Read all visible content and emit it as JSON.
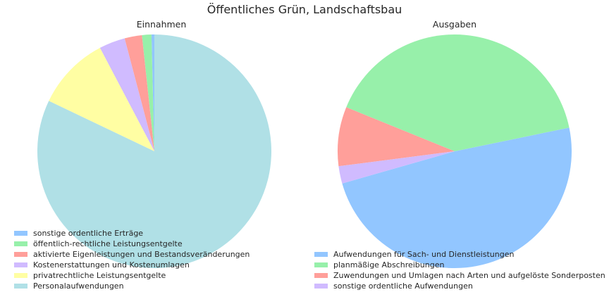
{
  "title": "Öffentliches Grün, Landschaftsbau",
  "colors": [
    "#92c6ff",
    "#97f0aa",
    "#ff9f9a",
    "#d0bbff",
    "#fffea3",
    "#b0e0e6"
  ],
  "chart_data": [
    {
      "type": "pie",
      "title": "Einnahmen",
      "legend_placement": "lower-left",
      "start_angle_deg": 90,
      "direction": "counterclockwise",
      "labels": [
        "sonstige ordentliche Erträge",
        "öffentlich-rechtliche Leistungsentgelte",
        "aktivierte Eigenleistungen und Bestandsveränderungen",
        "Kostenerstattungen und Kostenumlagen",
        "privatrechtliche Leistungsentgelte",
        "Personalaufwendungen"
      ],
      "values": [
        0.4,
        1.3,
        2.4,
        3.6,
        10.2,
        82.1
      ]
    },
    {
      "type": "pie",
      "title": "Ausgaben",
      "legend_placement": "lower-left",
      "start_angle_deg": 196,
      "direction": "counterclockwise",
      "labels": [
        "Aufwendungen für Sach- und Dienstleistungen",
        "planmäßige Abschreibungen",
        "Zuwendungen und Umlagen nach Arten und aufgelöste Sonderposten",
        "sonstige ordentliche Aufwendungen"
      ],
      "values": [
        48.8,
        40.6,
        8.2,
        2.4
      ]
    }
  ]
}
